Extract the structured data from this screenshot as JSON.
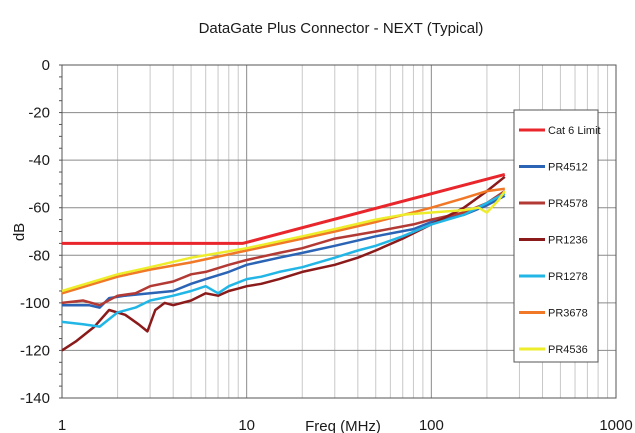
{
  "chart_data": {
    "type": "line",
    "title": "DataGate Plus Connector - NEXT (Typical)",
    "xlabel": "Freq (MHz)",
    "ylabel": "dB",
    "x_scale": "log",
    "xlim": [
      1,
      1000
    ],
    "ylim": [
      -140,
      0
    ],
    "x_ticks": [
      1,
      10,
      100,
      1000
    ],
    "x_tick_labels": [
      "1",
      "10",
      "100",
      "1000"
    ],
    "y_ticks": [
      0,
      -20,
      -40,
      -60,
      -80,
      -100,
      -120,
      -140
    ],
    "y_tick_labels": [
      "0",
      "-20",
      "-40",
      "-60",
      "-80",
      "-100",
      "-120",
      "-140"
    ],
    "grid": true,
    "legend_position": "right",
    "series": [
      {
        "name": "Cat 6 Limit",
        "color": "#e8262b",
        "x": [
          1,
          9.5,
          250
        ],
        "y": [
          -75,
          -75,
          -46
        ]
      },
      {
        "name": "PR4512",
        "color": "#2b63b5",
        "x": [
          1,
          1.4,
          1.6,
          1.8,
          2.2,
          3,
          4,
          5,
          6,
          8,
          10,
          15,
          20,
          30,
          50,
          80,
          100,
          150,
          200,
          250
        ],
        "y": [
          -101,
          -101,
          -102,
          -98,
          -97,
          -96,
          -95,
          -92,
          -90,
          -87,
          -84,
          -81,
          -79,
          -76,
          -72,
          -69,
          -66,
          -63,
          -59,
          -55
        ]
      },
      {
        "name": "PR4578",
        "color": "#b33a34",
        "x": [
          1,
          1.3,
          1.6,
          2,
          2.5,
          3,
          4,
          5,
          6,
          8,
          10,
          15,
          20,
          30,
          50,
          80,
          100,
          150,
          200,
          250
        ],
        "y": [
          -100,
          -99,
          -101,
          -97,
          -96,
          -93,
          -91,
          -88,
          -87,
          -84,
          -82,
          -79,
          -77,
          -73,
          -70,
          -67,
          -65,
          -62,
          -58,
          -53
        ]
      },
      {
        "name": "PR1236",
        "color": "#8b1a1a",
        "x": [
          1,
          1.2,
          1.5,
          1.8,
          2.2,
          2.6,
          2.9,
          3.2,
          3.6,
          4,
          5,
          6,
          7,
          8,
          9,
          10,
          12,
          15,
          20,
          30,
          40,
          50,
          70,
          100,
          150,
          200,
          250
        ],
        "y": [
          -120,
          -116,
          -110,
          -103,
          -105,
          -109,
          -112,
          -103,
          -100,
          -101,
          -99,
          -96,
          -97,
          -95,
          -94,
          -93,
          -92,
          -90,
          -87,
          -84,
          -81,
          -78,
          -73,
          -67,
          -60,
          -53,
          -47
        ]
      },
      {
        "name": "PR1278",
        "color": "#21b6e6",
        "x": [
          1,
          1.3,
          1.6,
          2,
          2.5,
          3,
          4,
          5,
          6,
          7,
          8,
          10,
          12,
          15,
          20,
          30,
          40,
          50,
          70,
          100,
          150,
          200,
          250
        ],
        "y": [
          -108,
          -109,
          -110,
          -104,
          -102,
          -99,
          -97,
          -95,
          -93,
          -96,
          -93,
          -90,
          -89,
          -87,
          -85,
          -81,
          -78,
          -76,
          -72,
          -67,
          -63,
          -58,
          -54
        ]
      },
      {
        "name": "PR3678",
        "color": "#f07826",
        "x": [
          1,
          2,
          3,
          5,
          10,
          20,
          30,
          50,
          100,
          150,
          200,
          250
        ],
        "y": [
          -96,
          -89,
          -86,
          -83,
          -78,
          -73,
          -70,
          -66,
          -60,
          -56,
          -53,
          -52
        ]
      },
      {
        "name": "PR4536",
        "color": "#eded2c",
        "x": [
          1,
          2,
          3,
          5,
          10,
          20,
          30,
          50,
          70,
          100,
          150,
          180,
          200,
          230,
          250
        ],
        "y": [
          -95,
          -88,
          -85,
          -81,
          -77,
          -72,
          -69,
          -65,
          -63,
          -62,
          -61,
          -60,
          -62,
          -57,
          -53
        ]
      }
    ]
  }
}
